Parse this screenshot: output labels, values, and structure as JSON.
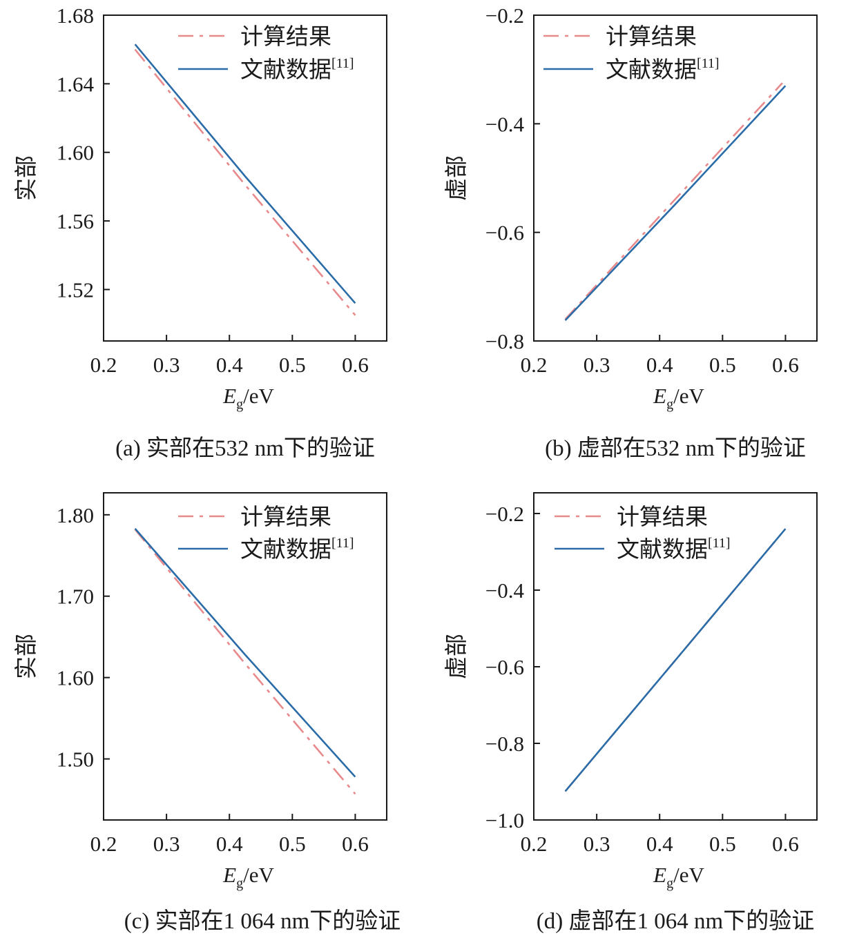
{
  "chart_data": [
    {
      "type": "line",
      "caption": "(a) 实部在532 nm下的验证",
      "xlabel_main": "E",
      "xlabel_sub": "g",
      "xlabel_unit": "/eV",
      "ylabel": "实部",
      "xlim": [
        0.2,
        0.65
      ],
      "ylim": [
        1.49,
        1.68
      ],
      "xticks": [
        0.2,
        0.3,
        0.4,
        0.5,
        0.6
      ],
      "xtick_labels": [
        "0.2",
        "0.3",
        "0.4",
        "0.5",
        "0.6"
      ],
      "yticks": [
        1.52,
        1.56,
        1.6,
        1.64,
        1.68
      ],
      "ytick_labels": [
        "1.52",
        "1.56",
        "1.60",
        "1.64",
        "1.68"
      ],
      "legend_position": "top-right",
      "series": [
        {
          "name": "计算结果",
          "style": "dash-dot",
          "color": "#e8898c",
          "x": [
            0.25,
            0.425,
            0.6
          ],
          "y": [
            1.66,
            1.581,
            1.505
          ]
        },
        {
          "name": "文献数据",
          "name_sup": "[11]",
          "style": "solid",
          "color": "#2a6ca8",
          "x": [
            0.25,
            0.425,
            0.6
          ],
          "y": [
            1.663,
            1.586,
            1.512
          ]
        }
      ]
    },
    {
      "type": "line",
      "caption": "(b) 虚部在532 nm下的验证",
      "xlabel_main": "E",
      "xlabel_sub": "g",
      "xlabel_unit": "/eV",
      "ylabel": "虚部",
      "xlim": [
        0.2,
        0.65
      ],
      "ylim": [
        -0.8,
        -0.2
      ],
      "xticks": [
        0.2,
        0.3,
        0.4,
        0.5,
        0.6
      ],
      "xtick_labels": [
        "0.2",
        "0.3",
        "0.4",
        "0.5",
        "0.6"
      ],
      "yticks": [
        -0.8,
        -0.6,
        -0.4,
        -0.2
      ],
      "ytick_labels": [
        "−0.8",
        "−0.6",
        "−0.4",
        "−0.2"
      ],
      "legend_position": "top-right",
      "series": [
        {
          "name": "计算结果",
          "style": "dash-dot",
          "color": "#e8898c",
          "x": [
            0.25,
            0.42,
            0.595
          ],
          "y": [
            -0.76,
            -0.545,
            -0.325
          ]
        },
        {
          "name": "文献数据",
          "name_sup": "[11]",
          "style": "solid",
          "color": "#2a6ca8",
          "x": [
            0.25,
            0.425,
            0.6
          ],
          "y": [
            -0.762,
            -0.548,
            -0.33
          ]
        }
      ]
    },
    {
      "type": "line",
      "caption": "(c) 实部在1 064 nm下的验证",
      "xlabel_main": "E",
      "xlabel_sub": "g",
      "xlabel_unit": "/eV",
      "ylabel": "实部",
      "xlim": [
        0.2,
        0.65
      ],
      "ylim": [
        1.425,
        1.827
      ],
      "xticks": [
        0.2,
        0.3,
        0.4,
        0.5,
        0.6
      ],
      "xtick_labels": [
        "0.2",
        "0.3",
        "0.4",
        "0.5",
        "0.6"
      ],
      "yticks": [
        1.5,
        1.6,
        1.7,
        1.8
      ],
      "ytick_labels": [
        "1.50",
        "1.60",
        "1.70",
        "1.80"
      ],
      "legend_position": "top-right",
      "series": [
        {
          "name": "计算结果",
          "style": "dash-dot",
          "color": "#e8898c",
          "x": [
            0.25,
            0.425,
            0.6
          ],
          "y": [
            1.782,
            1.617,
            1.457
          ]
        },
        {
          "name": "文献数据",
          "name_sup": "[11]",
          "style": "solid",
          "color": "#2a6ca8",
          "x": [
            0.25,
            0.425,
            0.6
          ],
          "y": [
            1.783,
            1.628,
            1.478
          ]
        }
      ]
    },
    {
      "type": "line",
      "caption": "(d) 虚部在1 064 nm下的验证",
      "xlabel_main": "E",
      "xlabel_sub": "g",
      "xlabel_unit": "/eV",
      "ylabel": "虚部",
      "xlim": [
        0.2,
        0.65
      ],
      "ylim": [
        -1.0,
        -0.146
      ],
      "xticks": [
        0.2,
        0.3,
        0.4,
        0.5,
        0.6
      ],
      "xtick_labels": [
        "0.2",
        "0.3",
        "0.4",
        "0.5",
        "0.6"
      ],
      "yticks": [
        -1.0,
        -0.8,
        -0.6,
        -0.4,
        -0.2
      ],
      "ytick_labels": [
        "−1.0",
        "−0.8",
        "−0.6",
        "−0.4",
        "−0.2"
      ],
      "legend_position": "top-right",
      "series": [
        {
          "name": "计算结果",
          "style": "dash-dot",
          "color": "#e8898c",
          "x": [
            0.25,
            0.425,
            0.6
          ],
          "y": [
            -0.925,
            -0.583,
            -0.24
          ]
        },
        {
          "name": "文献数据",
          "name_sup": "[11]",
          "style": "solid",
          "color": "#2a6ca8",
          "x": [
            0.25,
            0.425,
            0.6
          ],
          "y": [
            -0.925,
            -0.583,
            -0.24
          ]
        }
      ]
    }
  ]
}
